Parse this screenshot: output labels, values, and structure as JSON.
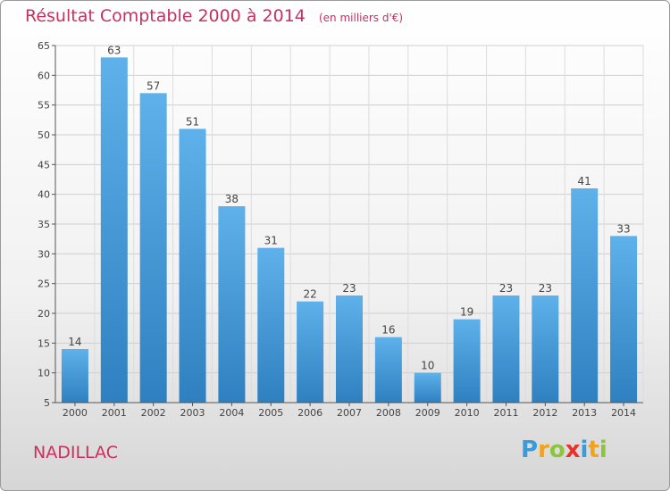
{
  "header": {
    "title": "Résultat Comptable 2000 à 2014",
    "subtitle": "(en milliers d'€)"
  },
  "footer": {
    "commune": "NADILLAC",
    "logo_letters": [
      {
        "ch": "P",
        "color": "#3a9bd8"
      },
      {
        "ch": "r",
        "color": "#f2a21c"
      },
      {
        "ch": "o",
        "color": "#8cc43c"
      },
      {
        "ch": "x",
        "color": "#e8322c"
      },
      {
        "ch": "i",
        "color": "#3a9bd8"
      },
      {
        "ch": "t",
        "color": "#f2a21c"
      },
      {
        "ch": "i",
        "color": "#8cc43c"
      }
    ]
  },
  "colors": {
    "accent": "#c8305f",
    "bar_light": "#5eb1ea",
    "bar_dark": "#2f80c0"
  },
  "chart_data": {
    "type": "bar",
    "title": "Résultat Comptable 2000 à 2014",
    "subtitle": "(en milliers d'€)",
    "categories": [
      "2000",
      "2001",
      "2002",
      "2003",
      "2004",
      "2005",
      "2006",
      "2007",
      "2008",
      "2009",
      "2010",
      "2011",
      "2012",
      "2013",
      "2014"
    ],
    "values": [
      14,
      63,
      57,
      51,
      38,
      31,
      22,
      23,
      16,
      10,
      19,
      23,
      23,
      41,
      33
    ],
    "ylim": [
      5,
      65
    ],
    "yticks": [
      5,
      10,
      15,
      20,
      25,
      30,
      35,
      40,
      45,
      50,
      55,
      60,
      65
    ],
    "grid": true,
    "data_labels": true
  }
}
